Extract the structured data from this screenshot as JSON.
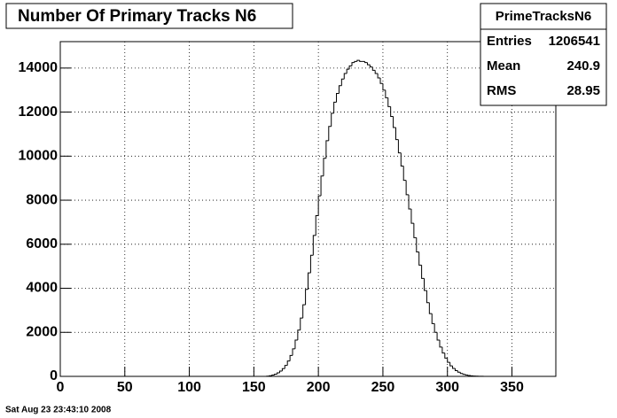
{
  "chart_data": {
    "type": "histogram",
    "title": "Number Of Primary Tracks N6",
    "bins": [
      156,
      158,
      160,
      162,
      164,
      166,
      168,
      170,
      172,
      174,
      176,
      178,
      180,
      182,
      184,
      186,
      188,
      190,
      192,
      194,
      196,
      198,
      200,
      202,
      204,
      206,
      208,
      210,
      212,
      214,
      216,
      218,
      220,
      222,
      224,
      226,
      228,
      230,
      232,
      234,
      236,
      238,
      240,
      242,
      244,
      246,
      248,
      250,
      252,
      254,
      256,
      258,
      260,
      262,
      264,
      266,
      268,
      270,
      272,
      274,
      276,
      278,
      280,
      282,
      284,
      286,
      288,
      290,
      292,
      294,
      296,
      298,
      300,
      302,
      304,
      306,
      308,
      310,
      312,
      314,
      316,
      318,
      320,
      322,
      324,
      326,
      328,
      330,
      332,
      334,
      336
    ],
    "values": [
      0,
      2,
      10,
      30,
      60,
      100,
      160,
      240,
      350,
      500,
      700,
      950,
      1250,
      1650,
      2100,
      2650,
      3250,
      3950,
      4700,
      5500,
      6400,
      7300,
      8200,
      9100,
      9900,
      10700,
      11350,
      11950,
      12450,
      12850,
      13200,
      13500,
      13750,
      13950,
      14100,
      14250,
      14300,
      14350,
      14300,
      14300,
      14250,
      14150,
      14050,
      13900,
      13750,
      13550,
      13300,
      13000,
      12650,
      12250,
      11800,
      11300,
      10750,
      10150,
      9550,
      8900,
      8250,
      7600,
      6950,
      6300,
      5650,
      5050,
      4450,
      3900,
      3350,
      2850,
      2400,
      2000,
      1650,
      1330,
      1060,
      830,
      640,
      480,
      360,
      260,
      190,
      130,
      90,
      60,
      40,
      25,
      15,
      9,
      5,
      3,
      2,
      1,
      0,
      0
    ],
    "color": "#000000",
    "xlim": [
      0,
      384
    ],
    "xticks": [
      0,
      50,
      100,
      150,
      200,
      250,
      300,
      350
    ],
    "ylim": [
      0,
      15200
    ],
    "yticks": [
      0,
      2000,
      4000,
      6000,
      8000,
      10000,
      12000,
      14000
    ],
    "grid": true,
    "stats": {
      "title": "PrimeTracksN6",
      "rows": [
        {
          "label": "Entries",
          "value": 1206541
        },
        {
          "label": "Mean",
          "value": 240.9
        },
        {
          "label": "RMS",
          "value": 28.95
        }
      ]
    }
  },
  "footer": "Sat Aug 23 23:43:10 2008"
}
